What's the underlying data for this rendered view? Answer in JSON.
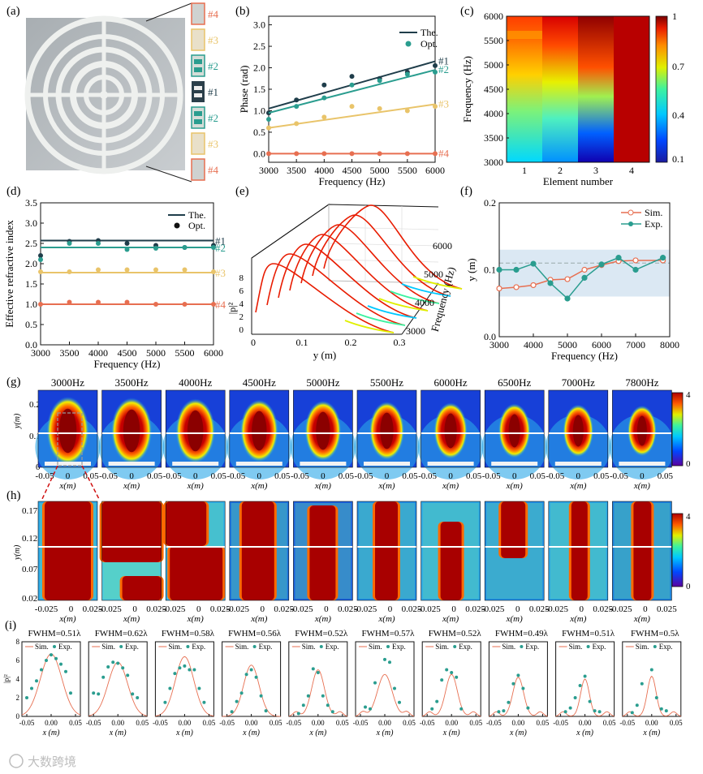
{
  "panels": {
    "a": {
      "letter": "(a)",
      "labels": [
        "#4",
        "#3",
        "#2",
        "#1",
        "#2",
        "#3",
        "#4"
      ]
    },
    "b": {
      "letter": "(b)"
    },
    "c": {
      "letter": "(c)"
    },
    "d": {
      "letter": "(d)"
    },
    "e": {
      "letter": "(e)"
    },
    "f": {
      "letter": "(f)"
    },
    "g": {
      "letter": "(g)",
      "freqs": [
        "3000Hz",
        "3500Hz",
        "4000Hz",
        "4500Hz",
        "5000Hz",
        "5500Hz",
        "6000Hz",
        "6500Hz",
        "7000Hz",
        "7800Hz"
      ],
      "yticks": [
        "0.2",
        "0.1",
        "0"
      ],
      "xticks": [
        "-0.05",
        "0",
        "0.05"
      ],
      "xlabel": "x(m)",
      "ylabel": "y(m)",
      "cbar": [
        "4",
        "0"
      ]
    },
    "h": {
      "letter": "(h)",
      "yticks": [
        "0.17",
        "0.12",
        "0.07",
        "0.02"
      ],
      "xticks": [
        "-0.025",
        "0",
        "0.025"
      ],
      "xlabel": "x(m)",
      "ylabel": "y(m)",
      "cbar": [
        "4",
        "0"
      ]
    },
    "i": {
      "letter": "(i)",
      "fwhm": [
        "FWHM=0.51λ",
        "FWHM=0.62λ",
        "FWHM=0.58λ",
        "FWHM=0.56λ",
        "FWHM=0.52λ",
        "FWHM=0.57λ",
        "FWHM=0.52λ",
        "FWHM=0.49λ",
        "FWHM=0.51λ",
        "FWHM=0.5λ"
      ],
      "legend_sim": "Sim.",
      "legend_exp": "Exp.",
      "xticks": [
        "-0.05",
        "0.00",
        "0.05"
      ],
      "yticks": [
        "8",
        "6",
        "4",
        "2",
        "0"
      ],
      "xlabel": "x (m)",
      "ylabel": "|p|²"
    }
  },
  "watermark": "大数跨境",
  "colors": {
    "the": "#1f3d4a",
    "teal": "#2a9d8f",
    "gold": "#e9c46a",
    "orange": "#e76f51",
    "sim": "#e76f51"
  },
  "chart_data": [
    {
      "panel": "b",
      "type": "line",
      "title": "",
      "xlabel": "Frequency (Hz)",
      "ylabel": "Phase (rad)",
      "xlim": [
        3000,
        6000
      ],
      "ylim": [
        -0.2,
        3.2
      ],
      "xticks": [
        3000,
        3500,
        4000,
        4500,
        5000,
        5500,
        6000
      ],
      "yticks": [
        0.0,
        0.5,
        1.0,
        1.5,
        2.0,
        2.5,
        3.0
      ],
      "legend": [
        "The.",
        "Opt."
      ],
      "series": [
        {
          "name": "#1",
          "theory": [
            [
              3000,
              1.05
            ],
            [
              6000,
              2.15
            ]
          ],
          "opt_x": [
            3000,
            3500,
            4000,
            4500,
            5000,
            5500,
            6000
          ],
          "opt_y": [
            0.95,
            1.25,
            1.6,
            1.8,
            1.75,
            1.9,
            2.05
          ]
        },
        {
          "name": "#2",
          "theory": [
            [
              3000,
              0.95
            ],
            [
              6000,
              1.95
            ]
          ],
          "opt_x": [
            3000,
            3500,
            4000,
            4500,
            5000,
            5500,
            6000
          ],
          "opt_y": [
            0.8,
            1.1,
            1.3,
            1.6,
            1.7,
            1.85,
            1.9
          ]
        },
        {
          "name": "#3",
          "theory": [
            [
              3000,
              0.6
            ],
            [
              6000,
              1.15
            ]
          ],
          "opt_x": [
            3000,
            3500,
            4000,
            4500,
            5000,
            5500,
            6000
          ],
          "opt_y": [
            0.6,
            0.7,
            0.85,
            1.1,
            1.05,
            1.0,
            1.1
          ]
        },
        {
          "name": "#4",
          "theory": [
            [
              3000,
              0.0
            ],
            [
              6000,
              0.0
            ]
          ],
          "opt_x": [
            3000,
            3500,
            4000,
            4500,
            5000,
            5500,
            6000
          ],
          "opt_y": [
            0,
            0,
            0,
            0,
            0,
            0,
            0
          ]
        }
      ]
    },
    {
      "panel": "c",
      "type": "heatmap",
      "xlabel": "Element number",
      "ylabel": "Frequency (Hz)",
      "xticks": [
        1,
        2,
        3,
        4
      ],
      "yticks": [
        3000,
        3500,
        4000,
        4500,
        5000,
        5500,
        6000
      ],
      "ylim": [
        3000,
        6000
      ],
      "cbar_ticks": [
        1,
        0.7,
        0.4,
        0.1
      ]
    },
    {
      "panel": "d",
      "type": "line",
      "xlabel": "Frequency (Hz)",
      "ylabel": "Effective refractive index",
      "xlim": [
        3000,
        6000
      ],
      "ylim": [
        0,
        3.5
      ],
      "xticks": [
        3000,
        3500,
        4000,
        4500,
        5000,
        5500,
        6000
      ],
      "yticks": [
        0.0,
        0.5,
        1.0,
        1.5,
        2.0,
        2.5,
        3.0,
        3.5
      ],
      "legend": [
        "The.",
        "Opt."
      ],
      "series": [
        {
          "name": "#1",
          "theory": 2.57,
          "opt_x": [
            3000,
            3500,
            4000,
            4500,
            5000,
            5500,
            6000
          ],
          "opt_y": [
            2.2,
            2.55,
            2.57,
            2.5,
            2.45,
            2.4,
            2.45
          ]
        },
        {
          "name": "#2",
          "theory": 2.4,
          "opt_x": [
            3000,
            3500,
            4000,
            4500,
            5000,
            5500,
            6000
          ],
          "opt_y": [
            2.1,
            2.5,
            2.5,
            2.35,
            2.38,
            2.4,
            2.4
          ]
        },
        {
          "name": "#3",
          "theory": 1.78,
          "opt_x": [
            3000,
            3500,
            4000,
            4500,
            5000,
            5500,
            6000
          ],
          "opt_y": [
            1.8,
            1.8,
            1.85,
            1.85,
            1.85,
            1.85,
            1.8
          ]
        },
        {
          "name": "#4",
          "theory": 1.0,
          "opt_x": [
            3000,
            3500,
            4000,
            4500,
            5000,
            5500,
            6000
          ],
          "opt_y": [
            1.0,
            1.05,
            1.05,
            1.05,
            1.0,
            1.0,
            1.0
          ]
        }
      ]
    },
    {
      "panel": "e",
      "type": "line",
      "xlabel": "y (m)",
      "ylabel": "|p|²",
      "zlabel": "Frequency (Hz)",
      "xticks": [
        0,
        0.1,
        0.2,
        0.3
      ],
      "yticks": [
        0,
        2,
        4,
        6,
        8
      ],
      "zticks": [
        3000,
        4000,
        5000,
        6000
      ]
    },
    {
      "panel": "f",
      "type": "line",
      "xlabel": "Frequency (Hz)",
      "ylabel": "y (m)",
      "xlim": [
        3000,
        8000
      ],
      "ylim": [
        0,
        0.2
      ],
      "xticks": [
        3000,
        4000,
        5000,
        6000,
        7000,
        8000
      ],
      "yticks": [
        0.0,
        0.1,
        0.2
      ],
      "band": [
        0.06,
        0.13
      ],
      "dashed": 0.11,
      "series": [
        {
          "name": "Sim.",
          "x": [
            3000,
            3500,
            4000,
            4500,
            5000,
            5500,
            6000,
            6500,
            7000,
            7800
          ],
          "y": [
            0.072,
            0.074,
            0.077,
            0.085,
            0.086,
            0.1,
            0.107,
            0.113,
            0.114,
            0.114
          ]
        },
        {
          "name": "Exp.",
          "x": [
            3000,
            3500,
            4000,
            4500,
            5000,
            5500,
            6000,
            6500,
            7000,
            7800
          ],
          "y": [
            0.1,
            0.1,
            0.109,
            0.08,
            0.057,
            0.088,
            0.108,
            0.118,
            0.1,
            0.118
          ]
        }
      ]
    },
    {
      "panel": "i",
      "type": "line",
      "xlim": [
        -0.06,
        0.06
      ],
      "ylim": [
        0,
        8
      ],
      "series_exp": [
        [
          [
            -0.05,
            2
          ],
          [
            -0.04,
            3
          ],
          [
            -0.03,
            3.8
          ],
          [
            -0.02,
            5
          ],
          [
            -0.01,
            6
          ],
          [
            0,
            6.6
          ],
          [
            0.01,
            6.2
          ],
          [
            0.02,
            5.6
          ],
          [
            0.03,
            4.8
          ],
          [
            0.04,
            2.5
          ]
        ],
        [
          [
            -0.05,
            2.5
          ],
          [
            -0.04,
            2.4
          ],
          [
            -0.03,
            4.2
          ],
          [
            -0.02,
            5.3
          ],
          [
            -0.01,
            5.8
          ],
          [
            0,
            5.7
          ],
          [
            0.01,
            5.2
          ],
          [
            0.02,
            4.4
          ],
          [
            0.03,
            2.4
          ],
          [
            0.04,
            2
          ]
        ],
        [
          [
            -0.04,
            1.5
          ],
          [
            -0.03,
            3
          ],
          [
            -0.02,
            4.6
          ],
          [
            -0.01,
            5.2
          ],
          [
            0,
            5.4
          ],
          [
            0.01,
            5
          ],
          [
            0.02,
            5
          ],
          [
            0.03,
            3
          ],
          [
            0.04,
            1.5
          ]
        ],
        [
          [
            -0.04,
            0.5
          ],
          [
            -0.03,
            1.6
          ],
          [
            -0.02,
            2.5
          ],
          [
            -0.01,
            4.5
          ],
          [
            0,
            5
          ],
          [
            0.01,
            4.2
          ],
          [
            0.02,
            2.2
          ],
          [
            0.03,
            0.6
          ]
        ],
        [
          [
            -0.04,
            0.3
          ],
          [
            -0.03,
            1.2
          ],
          [
            -0.02,
            2.2
          ],
          [
            -0.01,
            5.1
          ],
          [
            0,
            4.7
          ],
          [
            0.01,
            2.2
          ],
          [
            0.02,
            1.2
          ],
          [
            0.03,
            0.5
          ]
        ],
        [
          [
            -0.04,
            1
          ],
          [
            -0.03,
            0.8
          ],
          [
            -0.02,
            3.6
          ],
          [
            0,
            6.1
          ],
          [
            0.01,
            5.8
          ],
          [
            0.02,
            3
          ],
          [
            0.03,
            1.5
          ]
        ],
        [
          [
            -0.04,
            0.8
          ],
          [
            -0.03,
            1.6
          ],
          [
            -0.02,
            3.9
          ],
          [
            -0.01,
            5
          ],
          [
            0,
            4.7
          ],
          [
            0.01,
            4.2
          ],
          [
            0.02,
            0.8
          ]
        ],
        [
          [
            -0.04,
            0.5
          ],
          [
            -0.03,
            0.6
          ],
          [
            -0.02,
            1.5
          ],
          [
            -0.01,
            3.5
          ],
          [
            0,
            4.4
          ],
          [
            0.01,
            3
          ],
          [
            0.02,
            0.9
          ]
        ],
        [
          [
            -0.04,
            0.5
          ],
          [
            -0.03,
            0.9
          ],
          [
            -0.02,
            2
          ],
          [
            -0.01,
            3.3
          ],
          [
            0,
            4.3
          ],
          [
            0.01,
            1.6
          ],
          [
            0.02,
            0.6
          ],
          [
            0.03,
            0.5
          ]
        ],
        [
          [
            -0.04,
            0.4
          ],
          [
            -0.03,
            1.2
          ],
          [
            -0.02,
            3.5
          ],
          [
            0,
            5
          ],
          [
            0.01,
            2
          ],
          [
            0.02,
            0.8
          ],
          [
            0.03,
            0.6
          ]
        ]
      ],
      "sim_peak": [
        6.7,
        5.8,
        6.4,
        5.5,
        5,
        4.5,
        4.5,
        4.2,
        4,
        4.3
      ],
      "sim_width": [
        0.022,
        0.02,
        0.019,
        0.016,
        0.013,
        0.015,
        0.012,
        0.011,
        0.009,
        0.009
      ]
    }
  ]
}
